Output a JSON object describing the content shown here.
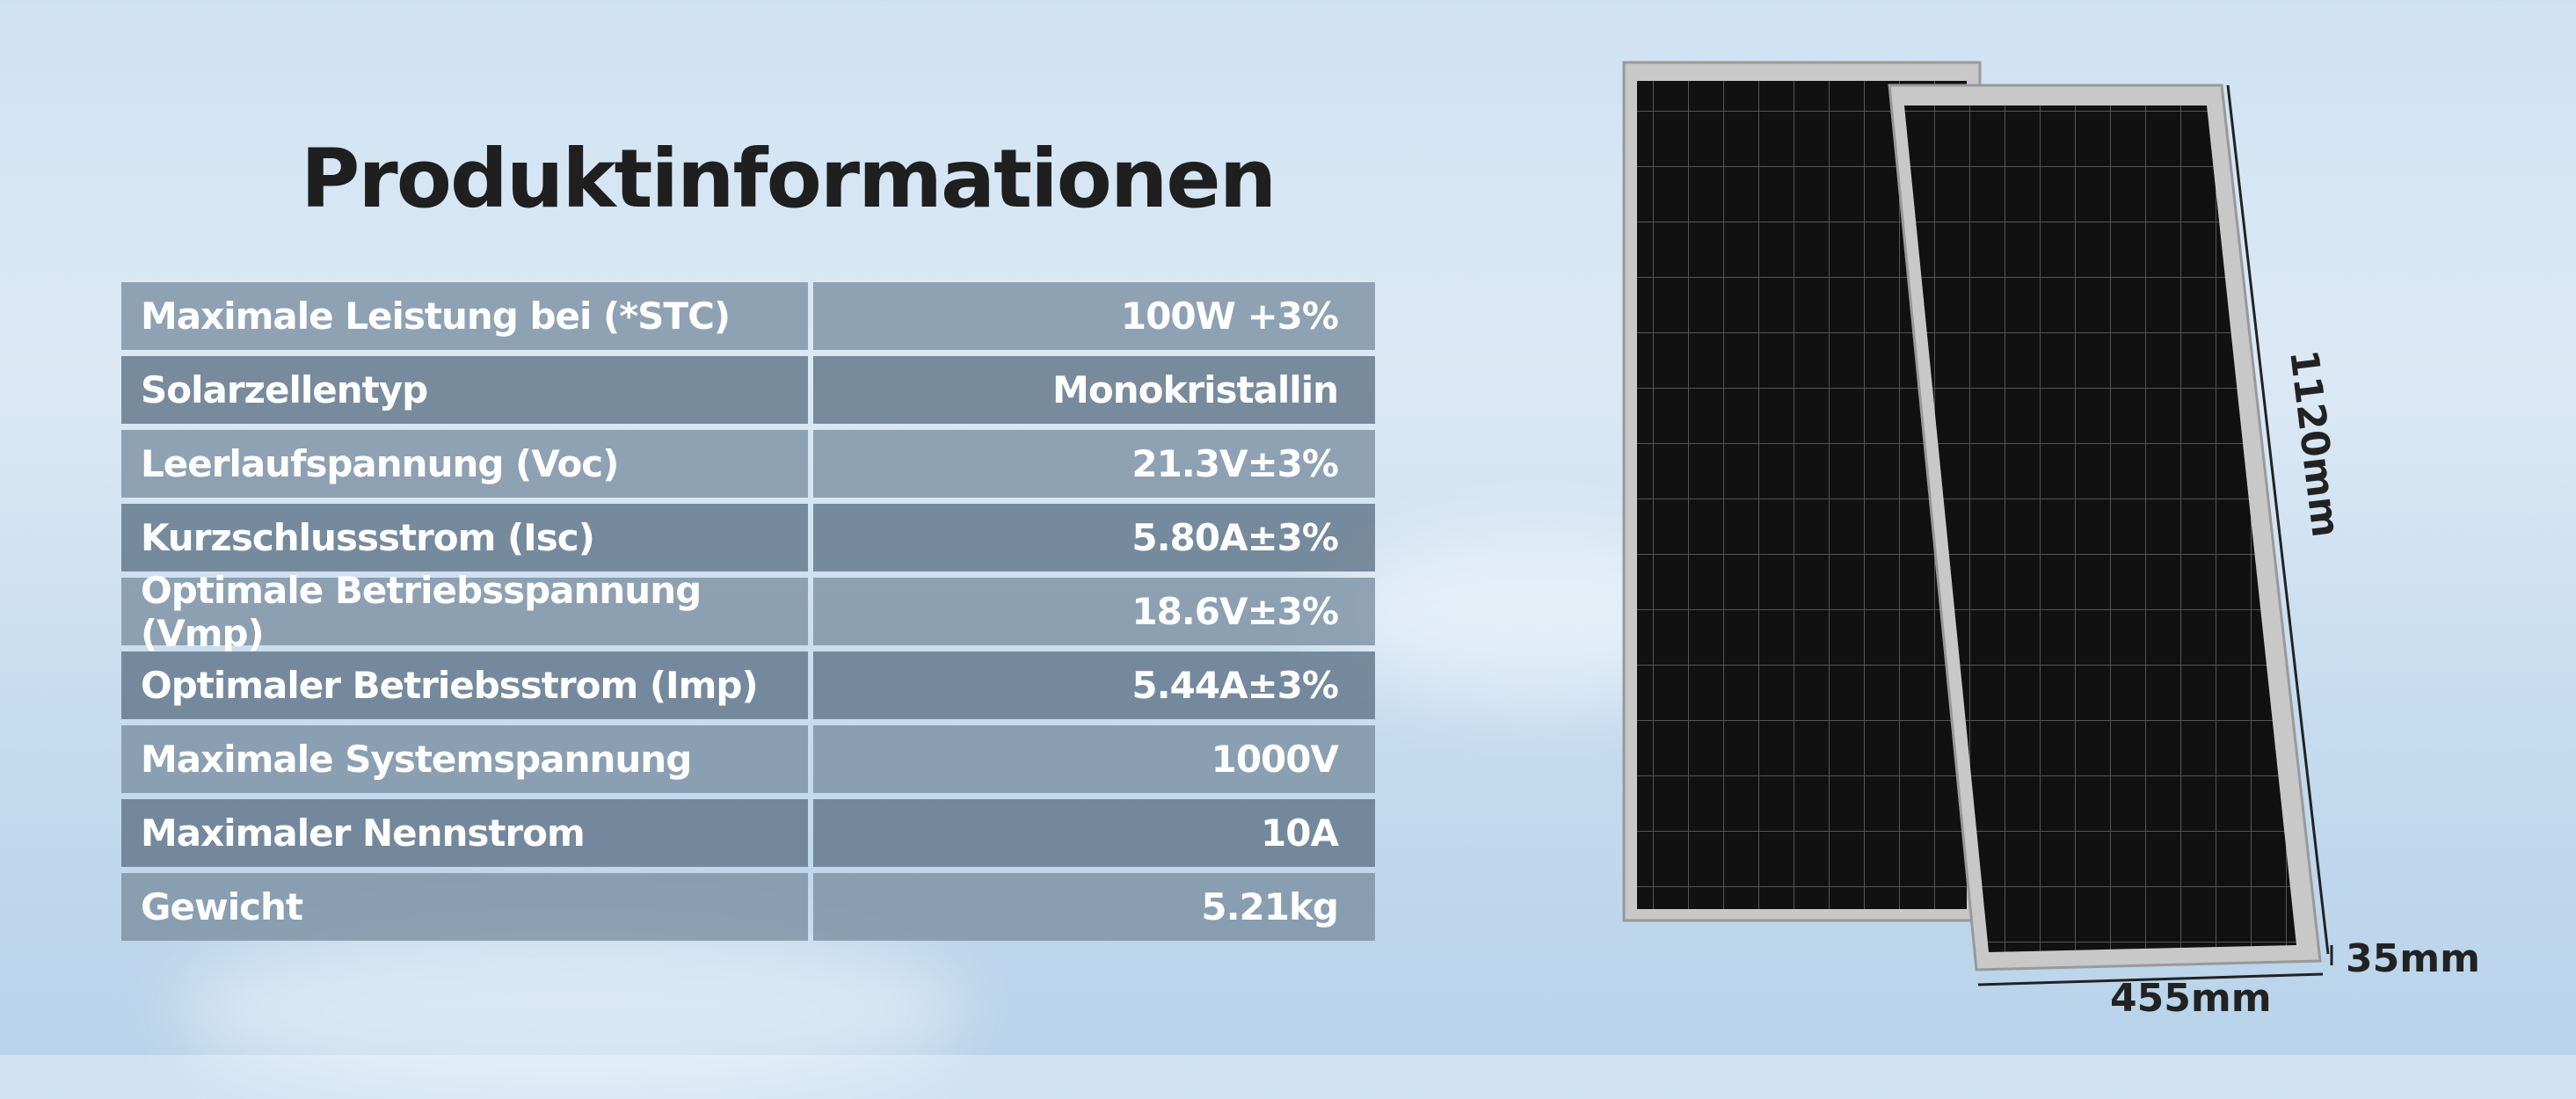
{
  "header": {
    "title": "Produktinformationen"
  },
  "table": {
    "rows": [
      [
        "Maximale Leistung bei (*STC)",
        "100W +3%"
      ],
      [
        "Solarzellentyp",
        "Monokristallin"
      ],
      [
        "Leerlaufspannung (Voc)",
        "21.3V±3%"
      ],
      [
        "Kurzschlussstrom (Isc)",
        "5.80A±3%"
      ],
      [
        "Optimale Betriebsspannung (Vmp)",
        "18.6V±3%"
      ],
      [
        "Optimaler Betriebsstrom (Imp)",
        "5.44A±3%"
      ],
      [
        "Maximale Systemspannung",
        "1000V"
      ],
      [
        "Maximaler Nennstrom",
        "10A"
      ],
      [
        "Gewicht",
        "5.21kg"
      ]
    ]
  },
  "dimensions": {
    "height": "1120mm",
    "width": "455mm",
    "depth": "35mm"
  }
}
